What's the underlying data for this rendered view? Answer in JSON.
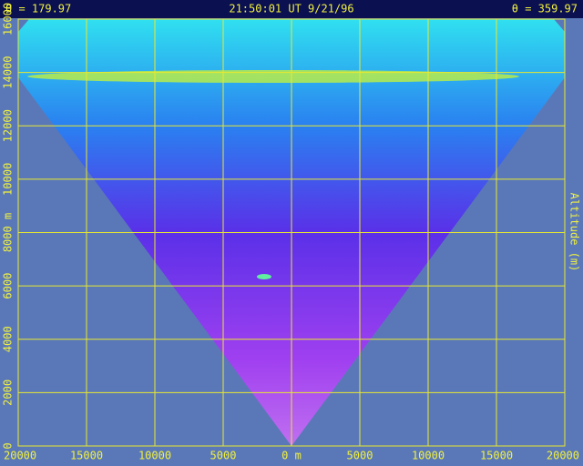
{
  "chart_data": {
    "type": "image",
    "title_left": "θ = 179.97",
    "title": "21:50:01 UT  9/21/96",
    "title_right": "θ = 359.97",
    "ylabel": "Altitude (m)",
    "xlim": [
      -20000,
      20000
    ],
    "ylim": [
      0,
      16000
    ],
    "xticks": [
      {
        "value": -20000,
        "label": "20000"
      },
      {
        "value": -15000,
        "label": "15000"
      },
      {
        "value": -10000,
        "label": "10000"
      },
      {
        "value": -5000,
        "label": "5000"
      },
      {
        "value": 0,
        "label": "0 m"
      },
      5000,
      10000,
      15000,
      20000
    ],
    "yticks": [
      0,
      2000,
      4000,
      6000,
      {
        "value": 8000,
        "label": "8000 m"
      },
      10000,
      12000,
      14000,
      16000
    ],
    "grid": true,
    "grid_color": "#e8e830"
  }
}
